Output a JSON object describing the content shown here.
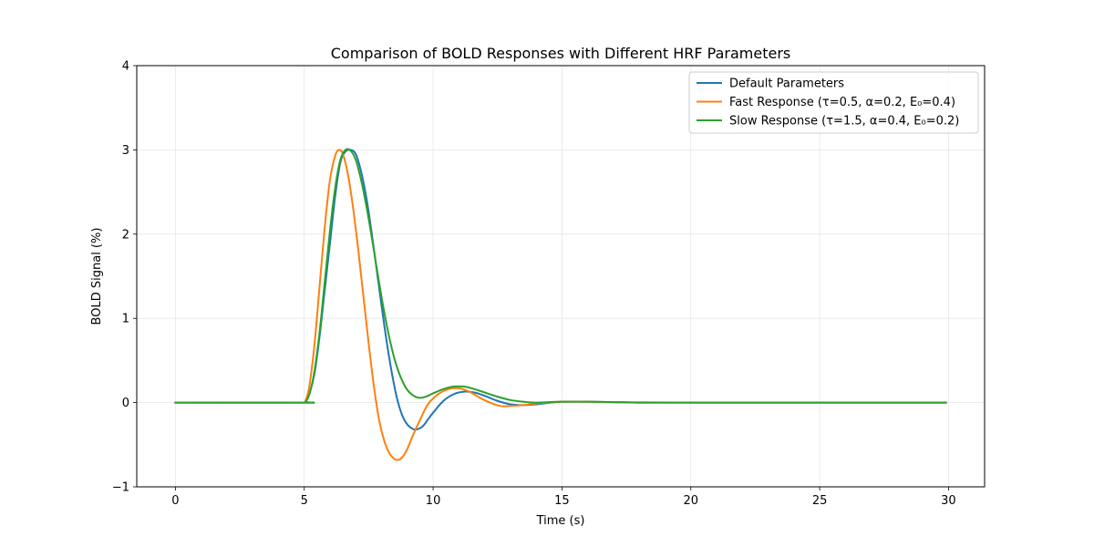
{
  "chart_data": {
    "type": "line",
    "title": "Comparison of BOLD Responses with Different HRF Parameters",
    "xlabel": "Time (s)",
    "ylabel": "BOLD Signal (%)",
    "xlim": [
      -1.5,
      31.4
    ],
    "ylim": [
      -1,
      4
    ],
    "xticks": [
      0,
      5,
      10,
      15,
      20,
      25,
      30
    ],
    "yticks": [
      -1,
      0,
      1,
      2,
      3,
      4
    ],
    "xtick_labels": [
      "0",
      "5",
      "10",
      "15",
      "20",
      "25",
      "30"
    ],
    "ytick_labels": [
      "−1",
      "0",
      "1",
      "2",
      "3",
      "4"
    ],
    "grid": true,
    "legend_position": "top-right",
    "series": [
      {
        "name": "Default Parameters",
        "color": "#1f77b4",
        "x": [
          0,
          5.0,
          5.05,
          5.2,
          5.4,
          5.6,
          5.8,
          6.0,
          6.2,
          6.4,
          6.6,
          6.8,
          7.0,
          7.2,
          7.4,
          7.6,
          7.8,
          8.0,
          8.2,
          8.4,
          8.6,
          8.8,
          9.0,
          9.2,
          9.35,
          9.6,
          9.8,
          10.0,
          10.4,
          10.8,
          11.2,
          11.6,
          12.0,
          12.5,
          13.0,
          13.5,
          14.0,
          15.0,
          16.0,
          17.0,
          18.0,
          20.0,
          25.0,
          29.9
        ],
        "y": [
          0,
          0,
          0.01,
          0.1,
          0.35,
          0.8,
          1.35,
          1.9,
          2.45,
          2.85,
          2.98,
          3.0,
          2.95,
          2.75,
          2.45,
          2.05,
          1.6,
          1.15,
          0.72,
          0.35,
          0.05,
          -0.15,
          -0.26,
          -0.31,
          -0.32,
          -0.28,
          -0.2,
          -0.12,
          0.02,
          0.1,
          0.13,
          0.12,
          0.08,
          0.02,
          -0.02,
          -0.03,
          -0.02,
          0.01,
          0.01,
          0.005,
          0,
          0,
          0,
          0
        ]
      },
      {
        "name": "Fast Response (τ=0.5, α=0.2, E₀=0.4)",
        "color": "#ff7f0e",
        "x": [
          0,
          5.0,
          5.05,
          5.2,
          5.4,
          5.6,
          5.8,
          6.0,
          6.2,
          6.35,
          6.5,
          6.7,
          6.9,
          7.1,
          7.3,
          7.5,
          7.7,
          7.9,
          8.1,
          8.3,
          8.5,
          8.65,
          8.8,
          9.0,
          9.2,
          9.5,
          9.8,
          10.2,
          10.6,
          11.0,
          11.4,
          11.8,
          12.2,
          12.6,
          13.0,
          13.5,
          14.0,
          14.5,
          15.0,
          16.0,
          17.0,
          20.0,
          25.0,
          29.9
        ],
        "y": [
          0,
          0,
          0.02,
          0.2,
          0.7,
          1.4,
          2.1,
          2.65,
          2.93,
          3.0,
          2.95,
          2.7,
          2.3,
          1.8,
          1.25,
          0.7,
          0.2,
          -0.2,
          -0.45,
          -0.6,
          -0.67,
          -0.68,
          -0.65,
          -0.55,
          -0.4,
          -0.2,
          -0.02,
          0.1,
          0.16,
          0.17,
          0.13,
          0.06,
          0.0,
          -0.04,
          -0.04,
          -0.03,
          -0.01,
          0.0,
          0.01,
          0.01,
          0.005,
          0,
          0,
          0
        ]
      },
      {
        "name": "Slow Response (τ=1.5, α=0.4, E₀=0.2)",
        "color": "#2ca02c",
        "x": [
          0,
          5.0,
          5.05,
          5.2,
          5.4,
          5.6,
          5.8,
          6.0,
          6.2,
          6.4,
          6.6,
          6.8,
          7.0,
          7.2,
          7.4,
          7.6,
          7.8,
          8.0,
          8.2,
          8.4,
          8.6,
          8.8,
          9.0,
          9.2,
          9.4,
          9.6,
          9.8,
          10.0,
          10.4,
          10.8,
          11.2,
          11.6,
          12.0,
          12.5,
          13.0,
          13.5,
          14.0,
          15.0,
          16.0,
          17.0,
          18.0,
          20.0,
          25.0,
          29.9
        ],
        "y": [
          0,
          0,
          0.01,
          0.1,
          0.38,
          0.85,
          1.45,
          2.05,
          2.55,
          2.88,
          3.0,
          2.99,
          2.88,
          2.65,
          2.35,
          2.0,
          1.62,
          1.25,
          0.92,
          0.64,
          0.42,
          0.26,
          0.15,
          0.09,
          0.06,
          0.06,
          0.08,
          0.11,
          0.16,
          0.19,
          0.19,
          0.16,
          0.12,
          0.07,
          0.03,
          0.01,
          0.0,
          0.01,
          0.01,
          0.005,
          0,
          0,
          0,
          0
        ]
      }
    ]
  }
}
